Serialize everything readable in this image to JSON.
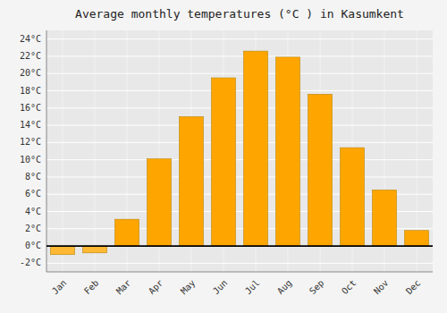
{
  "chart_data": {
    "type": "bar",
    "title": "Average monthly temperatures (°C ) in Kasumkent",
    "categories": [
      "Jan",
      "Feb",
      "Mar",
      "Apr",
      "May",
      "Jun",
      "Jul",
      "Aug",
      "Sep",
      "Oct",
      "Nov",
      "Dec"
    ],
    "values": [
      -1.0,
      -0.8,
      3.1,
      10.1,
      15.0,
      19.5,
      22.6,
      21.9,
      17.6,
      11.4,
      6.5,
      1.8
    ],
    "colors": [
      "#FFB833",
      "#FFB833",
      "#FFA500",
      "#FFA500",
      "#FFA500",
      "#FFA500",
      "#FFA500",
      "#FFA500",
      "#FFA500",
      "#FFA500",
      "#FFA500",
      "#FFA500"
    ],
    "ylim": [
      -3,
      25
    ],
    "yticks": [
      {
        "value": -2,
        "label": "-2°C"
      },
      {
        "value": 0,
        "label": "0°C"
      },
      {
        "value": 2,
        "label": "2°C"
      },
      {
        "value": 4,
        "label": "4°C"
      },
      {
        "value": 6,
        "label": "6°C"
      },
      {
        "value": 8,
        "label": "8°C"
      },
      {
        "value": 10,
        "label": "10°C"
      },
      {
        "value": 12,
        "label": "12°C"
      },
      {
        "value": 14,
        "label": "14°C"
      },
      {
        "value": 16,
        "label": "16°C"
      },
      {
        "value": 18,
        "label": "18°C"
      },
      {
        "value": 20,
        "label": "20°C"
      },
      {
        "value": 22,
        "label": "22°C"
      },
      {
        "value": 24,
        "label": "24°C"
      }
    ],
    "grid": true
  }
}
